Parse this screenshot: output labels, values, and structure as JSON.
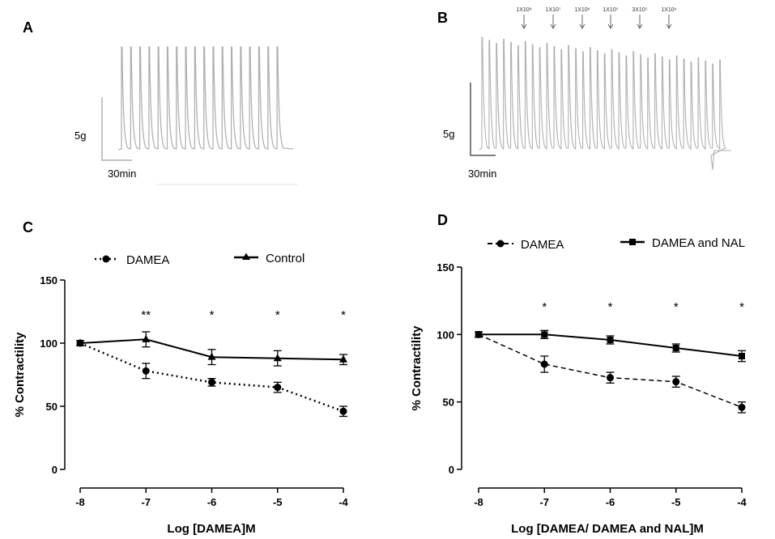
{
  "panel_labels": [
    "A",
    "B",
    "C",
    "D"
  ],
  "traces": {
    "a": {
      "scale_y_label": "5g",
      "scale_x_label": "30min"
    },
    "b": {
      "scale_y_label": "5g",
      "scale_x_label": "30min",
      "concentration_labels": [
        "1X10⁸",
        "1X10⁷",
        "1X10⁶",
        "1X10⁵",
        "3X10⁵",
        "1X10⁴"
      ]
    }
  },
  "colors": {
    "trace": "#b0b0b0",
    "axis": "#000000",
    "series": "#000000"
  },
  "chart_data": [
    {
      "type": "line",
      "panel": "C",
      "title": "",
      "xlabel": "Log [DAMEA]M",
      "ylabel": "% Contractility",
      "x": [
        -8,
        -7,
        -6,
        -5,
        -4
      ],
      "xlim": [
        -8,
        -4
      ],
      "ylim": [
        0,
        150
      ],
      "yticks": [
        0,
        50,
        100,
        150
      ],
      "grid": false,
      "legend": "top",
      "series": [
        {
          "name": "DAMEA",
          "marker": "circle",
          "line": "dotted",
          "values": [
            100,
            78,
            69,
            65,
            46
          ],
          "err": [
            2,
            6,
            3,
            4,
            4
          ]
        },
        {
          "name": "Control",
          "marker": "triangle",
          "line": "solid",
          "values": [
            100,
            103,
            89,
            88,
            87
          ],
          "err": [
            2,
            6,
            6,
            6,
            4
          ]
        }
      ],
      "annotations": [
        {
          "x": -7,
          "text": "**"
        },
        {
          "x": -6,
          "text": "*"
        },
        {
          "x": -5,
          "text": "*"
        },
        {
          "x": -4,
          "text": "*"
        }
      ]
    },
    {
      "type": "line",
      "panel": "D",
      "title": "",
      "xlabel": "Log [DAMEA/ DAMEA and NAL]M",
      "ylabel": "% Contractility",
      "x": [
        -8,
        -7,
        -6,
        -5,
        -4
      ],
      "xlim": [
        -8,
        -4
      ],
      "ylim": [
        0,
        150
      ],
      "yticks": [
        0,
        50,
        100,
        150
      ],
      "grid": false,
      "legend": "top",
      "series": [
        {
          "name": "DAMEA",
          "marker": "circle",
          "line": "dashed",
          "values": [
            100,
            78,
            68,
            65,
            46
          ],
          "err": [
            2,
            6,
            4,
            4,
            4
          ]
        },
        {
          "name": "DAMEA and NAL",
          "marker": "square",
          "line": "solid",
          "values": [
            100,
            100,
            96,
            90,
            84
          ],
          "err": [
            2,
            3,
            3,
            3,
            4
          ]
        }
      ],
      "annotations": [
        {
          "x": -7,
          "text": "*"
        },
        {
          "x": -6,
          "text": "*"
        },
        {
          "x": -5,
          "text": "*"
        },
        {
          "x": -4,
          "text": "*"
        }
      ]
    }
  ]
}
